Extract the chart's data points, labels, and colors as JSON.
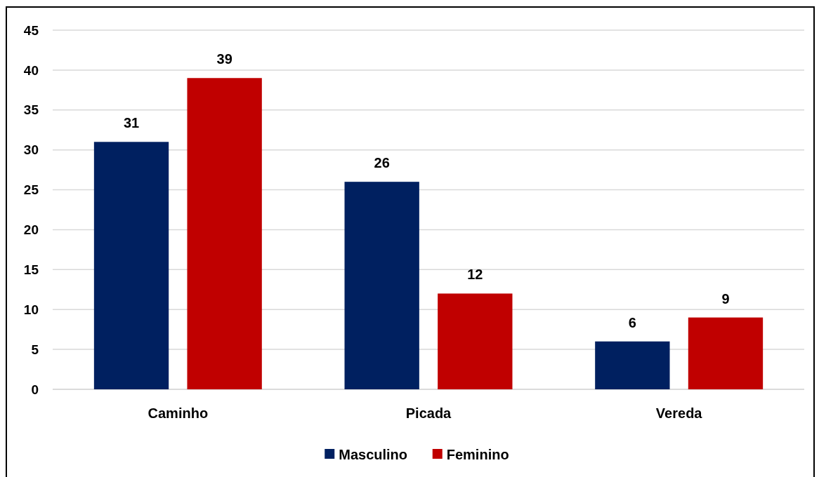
{
  "chart_data": {
    "type": "bar",
    "categories": [
      "Caminho",
      "Picada",
      "Vereda"
    ],
    "series": [
      {
        "name": "Masculino",
        "color": "#002060",
        "values": [
          31,
          26,
          6
        ]
      },
      {
        "name": "Feminino",
        "color": "#c00000",
        "values": [
          39,
          12,
          9
        ]
      }
    ],
    "ylim": [
      0,
      45
    ],
    "yticks": [
      0,
      5,
      10,
      15,
      20,
      25,
      30,
      35,
      40,
      45
    ],
    "grid": "y",
    "legend": "bottom",
    "data_labels": true
  }
}
